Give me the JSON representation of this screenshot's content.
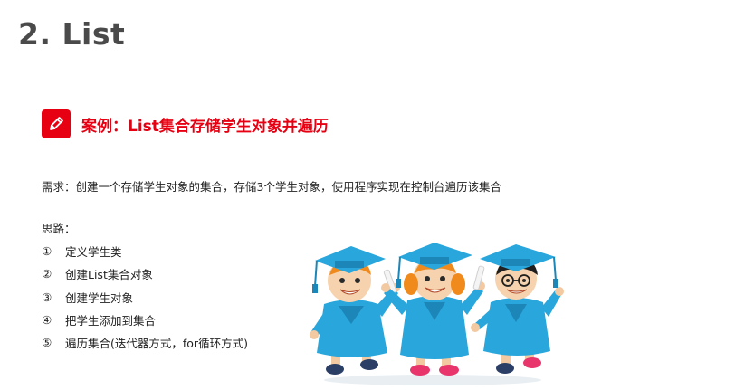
{
  "slide": {
    "title": "2. List"
  },
  "case": {
    "icon": "pencil-icon",
    "title": "案例：List集合存储学生对象并遍历",
    "accent_color": "#e60012"
  },
  "requirement": "需求：创建一个存储学生对象的集合，存储3个学生对象，使用程序实现在控制台遍历该集合",
  "approach": {
    "label": "思路：",
    "steps": [
      {
        "num": "①",
        "text": "定义学生类"
      },
      {
        "num": "②",
        "text": "创建List集合对象"
      },
      {
        "num": "③",
        "text": "创建学生对象"
      },
      {
        "num": "④",
        "text": "把学生添加到集合"
      },
      {
        "num": "⑤",
        "text": "遍历集合(迭代器方式，for循环方式)"
      }
    ]
  },
  "illustration": {
    "icon": "graduates-illustration",
    "gown_color": "#29a6dc"
  }
}
